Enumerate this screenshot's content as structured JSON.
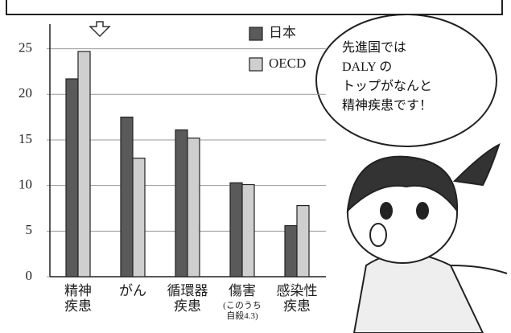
{
  "chart_data": {
    "type": "bar",
    "categories": [
      "精神\n疾患",
      "がん",
      "循環器\n疾患",
      "傷害",
      "感染性\n疾患"
    ],
    "series": [
      {
        "name": "日本",
        "color": "#5a5a5a",
        "values": [
          21.7,
          17.5,
          16.1,
          10.3,
          5.6
        ]
      },
      {
        "name": "OECD",
        "color": "#cfcfcf",
        "values": [
          24.7,
          13.0,
          15.2,
          10.1,
          7.8
        ]
      }
    ],
    "annotations": [
      "(このうち\n自殺4.3)"
    ],
    "speech_bubble": [
      "先進国では",
      "DALY の",
      "トップがなんと",
      "精神疾患です！"
    ],
    "ylim": [
      0,
      27.7
    ],
    "yticks": [
      0,
      5,
      10,
      15,
      20,
      25
    ],
    "grid": true
  }
}
